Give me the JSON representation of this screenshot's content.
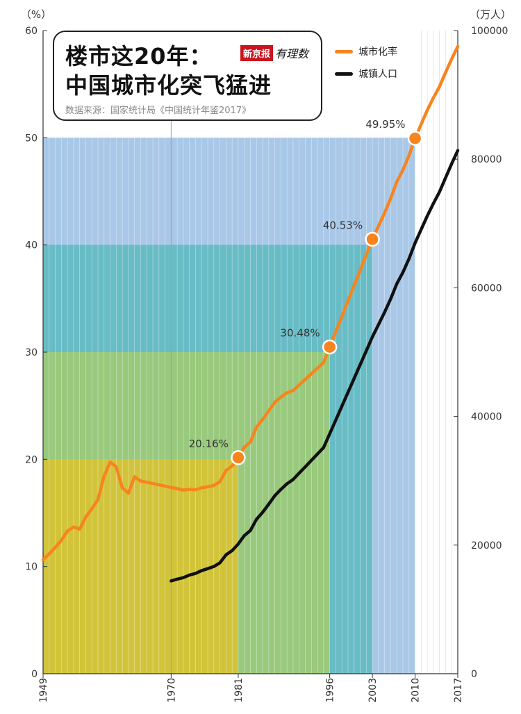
{
  "title": {
    "line1": "楼市这20年：",
    "line2": "中国城市化突飞猛进",
    "source": "数据来源：国家统计局《中国统计年鉴2017》",
    "brand_box": "新京报",
    "brand_script": "有理数"
  },
  "legend": [
    {
      "label": "城市化率",
      "color": "#f7841e"
    },
    {
      "label": "城镇人口",
      "color": "#111111"
    }
  ],
  "chart_data": {
    "type": "line",
    "left_unit": "（%）",
    "right_unit": "（万人）",
    "x_ticks": [
      "1949",
      "1970",
      "1981",
      "1996",
      "2003",
      "2010",
      "2017"
    ],
    "left_ticks": [
      "0",
      "10",
      "20",
      "30",
      "40",
      "50",
      "60"
    ],
    "right_ticks": [
      "0",
      "20000",
      "40000",
      "60000",
      "80000",
      "100000"
    ],
    "xlim": [
      1949,
      2017
    ],
    "ylim_left": [
      0,
      60
    ],
    "ylim_right": [
      0,
      100000
    ],
    "grid": "vertical year lines",
    "colors": {
      "urbanization": "#f7841e",
      "population": "#111111",
      "band_20": "#d2c43a",
      "band_30": "#99c97d",
      "band_40": "#68bcc6",
      "band_50": "#a9c8e8"
    },
    "bands": [
      {
        "level": 50,
        "end_year": 2010,
        "color": "#a9c8e8"
      },
      {
        "level": 40,
        "end_year": 2003,
        "color": "#68bcc6"
      },
      {
        "level": 30,
        "end_year": 1996,
        "color": "#99c97d"
      },
      {
        "level": 20,
        "end_year": 1981,
        "color": "#d2c43a"
      }
    ],
    "series": [
      {
        "name": "城市化率",
        "axis": "left",
        "x": [
          1949,
          1950,
          1951,
          1952,
          1953,
          1954,
          1955,
          1956,
          1957,
          1958,
          1959,
          1960,
          1961,
          1962,
          1963,
          1964,
          1965,
          1966,
          1967,
          1968,
          1969,
          1970,
          1971,
          1972,
          1973,
          1974,
          1975,
          1976,
          1977,
          1978,
          1979,
          1980,
          1981,
          1982,
          1983,
          1984,
          1985,
          1986,
          1987,
          1988,
          1989,
          1990,
          1991,
          1992,
          1993,
          1994,
          1995,
          1996,
          1997,
          1998,
          1999,
          2000,
          2001,
          2002,
          2003,
          2004,
          2005,
          2006,
          2007,
          2008,
          2009,
          2010,
          2011,
          2012,
          2013,
          2014,
          2015,
          2016,
          2017
        ],
        "values": [
          10.64,
          11.18,
          11.78,
          12.46,
          13.31,
          13.69,
          13.48,
          14.62,
          15.39,
          16.25,
          18.41,
          19.75,
          19.29,
          17.33,
          16.84,
          18.37,
          17.98,
          17.86,
          17.74,
          17.62,
          17.5,
          17.38,
          17.26,
          17.13,
          17.2,
          17.16,
          17.34,
          17.44,
          17.55,
          17.92,
          18.96,
          19.39,
          20.16,
          21.13,
          21.62,
          23.01,
          23.71,
          24.52,
          25.32,
          25.81,
          26.21,
          26.41,
          26.94,
          27.46,
          27.99,
          28.51,
          29.04,
          30.48,
          31.91,
          33.35,
          34.78,
          36.22,
          37.66,
          39.09,
          40.53,
          41.76,
          42.99,
          44.34,
          45.89,
          46.99,
          48.34,
          49.95,
          51.27,
          52.57,
          53.73,
          54.77,
          56.1,
          57.35,
          58.52
        ]
      },
      {
        "name": "城镇人口",
        "axis": "right",
        "x": [
          1970,
          1971,
          1972,
          1973,
          1974,
          1975,
          1976,
          1977,
          1978,
          1979,
          1980,
          1981,
          1982,
          1983,
          1984,
          1985,
          1986,
          1987,
          1988,
          1989,
          1990,
          1991,
          1992,
          1993,
          1994,
          1995,
          1996,
          1997,
          1998,
          1999,
          2000,
          2001,
          2002,
          2003,
          2004,
          2005,
          2006,
          2007,
          2008,
          2009,
          2010,
          2011,
          2012,
          2013,
          2014,
          2015,
          2016,
          2017
        ],
        "values": [
          14424,
          14711,
          14935,
          15345,
          15595,
          16030,
          16341,
          16669,
          17245,
          18495,
          19140,
          20171,
          21480,
          22274,
          24017,
          25094,
          26366,
          27674,
          28661,
          29540,
          30195,
          31203,
          32175,
          33173,
          34169,
          35174,
          37304,
          39449,
          41608,
          43748,
          45906,
          48064,
          50212,
          52376,
          54283,
          56212,
          58288,
          60633,
          62403,
          64512,
          66978,
          69079,
          71182,
          73111,
          74916,
          77116,
          79298,
          81347
        ]
      }
    ],
    "annotations": [
      {
        "year": 1981,
        "value": 20.16,
        "label": "20.16%"
      },
      {
        "year": 1996,
        "value": 30.48,
        "label": "30.48%"
      },
      {
        "year": 2003,
        "value": 40.53,
        "label": "40.53%"
      },
      {
        "year": 2010,
        "value": 49.95,
        "label": "49.95%"
      }
    ]
  }
}
